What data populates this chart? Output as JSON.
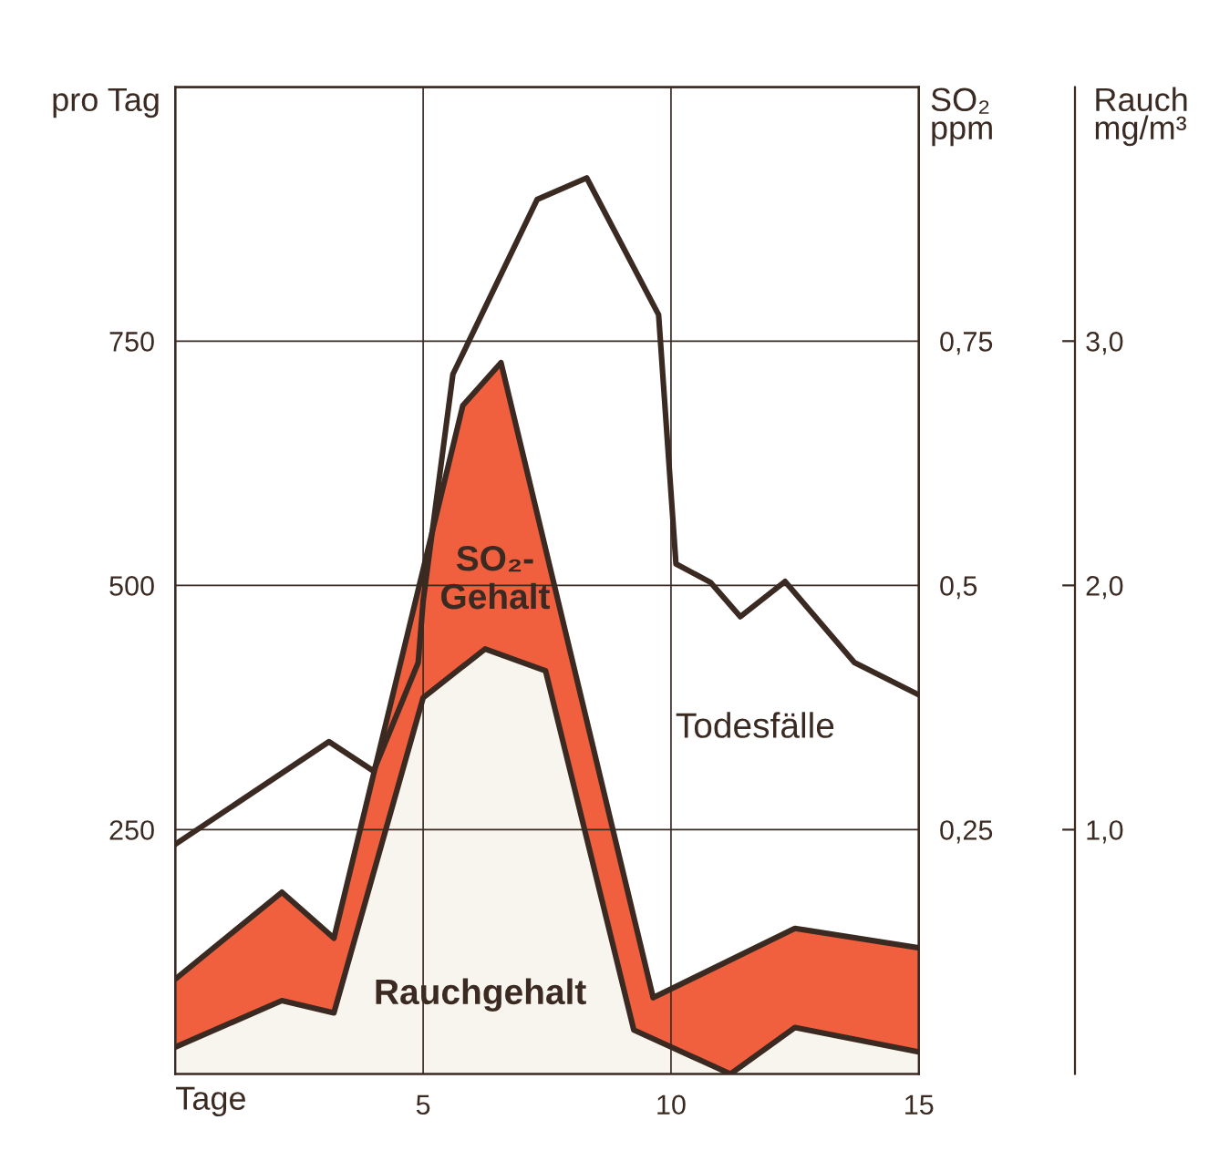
{
  "chart_data": {
    "type": "line",
    "ylabel": "pro Tag",
    "y2label": "SO₂\nppm",
    "y3label": "Rauch\nmg/m³",
    "xlabel": "Tage",
    "xlim": [
      0,
      15
    ],
    "xticks": [
      5,
      10,
      15
    ],
    "ylim": [
      0,
      1010
    ],
    "yticks": [
      250,
      500,
      750
    ],
    "y2lim": [
      0,
      1.01
    ],
    "y2ticks": [
      {
        "value": 0.25,
        "label": "0,25"
      },
      {
        "value": 0.5,
        "label": "0,5"
      },
      {
        "value": 0.75,
        "label": "0,75"
      }
    ],
    "y3lim": [
      0,
      4.04
    ],
    "y3ticks": [
      {
        "value": 1.0,
        "label": "1,0"
      },
      {
        "value": 2.0,
        "label": "2,0"
      },
      {
        "value": 3.0,
        "label": "3,0"
      }
    ],
    "grid": true,
    "legend": false,
    "marker": "none",
    "line_style": "solid",
    "series": [
      {
        "name": "SO₂-\nGehalt",
        "type": "area",
        "axis": "y2",
        "color": "#f0603f",
        "x": [
          0,
          2.15,
          3.2,
          5.8,
          6.57,
          9.64,
          12.5,
          15
        ],
        "values": [
          0.097,
          0.186,
          0.139,
          0.684,
          0.728,
          0.078,
          0.149,
          0.129
        ]
      },
      {
        "name": "Rauchgehalt",
        "type": "area",
        "axis": "y3",
        "color": "#f7f5ee",
        "x": [
          0,
          2.15,
          3.2,
          5.0,
          6.25,
          7.47,
          9.25,
          11.2,
          12.5,
          15
        ],
        "values": [
          0.11,
          0.3,
          0.25,
          1.54,
          1.74,
          1.65,
          0.18,
          0.0,
          0.19,
          0.09
        ]
      },
      {
        "name": "Todesfälle",
        "color": "#3a2a22",
        "x": [
          0,
          3.1,
          4.0,
          4.9,
          5.0,
          5.6,
          7.3,
          8.3,
          9.75,
          10.1,
          10.8,
          11.4,
          12.3,
          13.7,
          15
        ],
        "values": [
          235,
          340,
          310,
          421,
          484,
          716,
          895,
          917,
          777,
          522,
          503,
          468,
          504,
          421,
          388
        ]
      }
    ]
  }
}
